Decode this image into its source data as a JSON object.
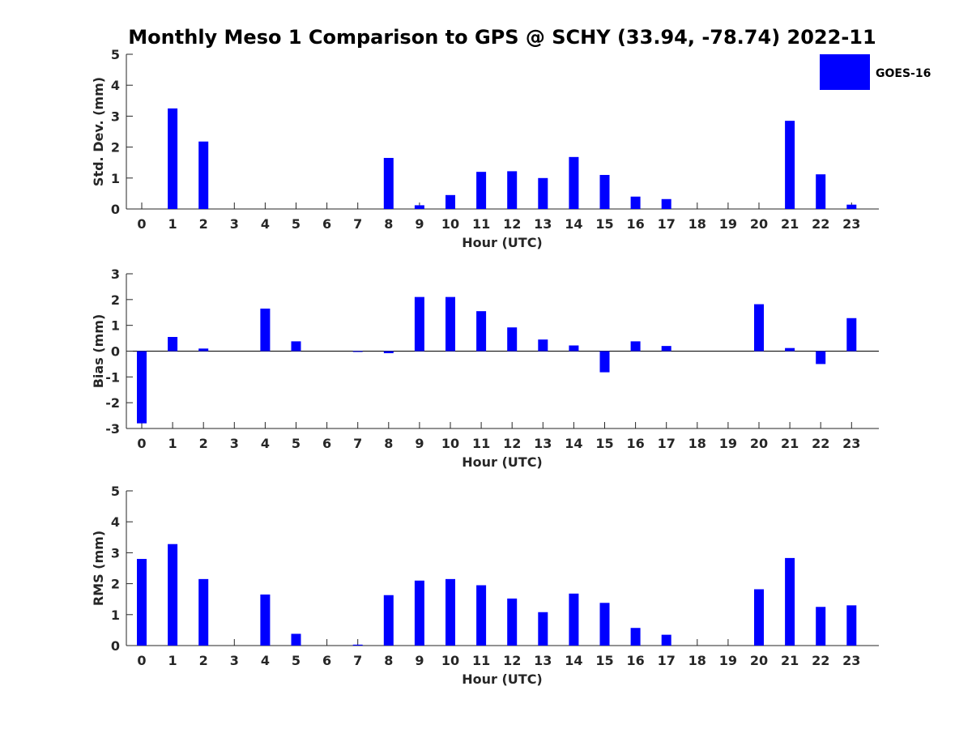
{
  "chart_data": {
    "title": "Monthly Meso 1 Comparison to GPS @ SCHY (33.94, -78.74) 2022-11",
    "legend": {
      "label": "GOES-16",
      "color": "#0000ff",
      "placement": "top-right"
    },
    "panels": [
      {
        "type": "bar",
        "id": "std-dev",
        "ylabel": "Std. Dev. (mm)",
        "xlabel": "Hour (UTC)",
        "ylim": [
          0,
          5
        ],
        "yticks": [
          0,
          1,
          2,
          3,
          4,
          5
        ],
        "categories": [
          0,
          1,
          2,
          3,
          4,
          5,
          6,
          7,
          8,
          9,
          10,
          11,
          12,
          13,
          14,
          15,
          16,
          17,
          18,
          19,
          20,
          21,
          22,
          23
        ],
        "values": [
          0,
          3.25,
          2.18,
          0,
          0,
          0,
          0,
          0,
          1.65,
          0.12,
          0.45,
          1.2,
          1.22,
          1.0,
          1.68,
          1.1,
          0.4,
          0.32,
          0,
          0,
          0,
          2.85,
          1.12,
          0.14
        ],
        "series_name": "GOES-16",
        "color": "#0000ff"
      },
      {
        "type": "bar",
        "id": "bias",
        "ylabel": "Bias (mm)",
        "xlabel": "Hour (UTC)",
        "ylim": [
          -3,
          3
        ],
        "yticks": [
          -3,
          -2,
          -1,
          0,
          1,
          2,
          3
        ],
        "categories": [
          0,
          1,
          2,
          3,
          4,
          5,
          6,
          7,
          8,
          9,
          10,
          11,
          12,
          13,
          14,
          15,
          16,
          17,
          18,
          19,
          20,
          21,
          22,
          23
        ],
        "values": [
          -2.8,
          0.55,
          0.1,
          0,
          1.65,
          0.38,
          0,
          -0.02,
          -0.08,
          2.1,
          2.1,
          1.55,
          0.92,
          0.45,
          0.22,
          -0.82,
          0.38,
          0.2,
          0,
          0,
          1.82,
          0.12,
          -0.5,
          1.28
        ],
        "series_name": "GOES-16",
        "color": "#0000ff"
      },
      {
        "type": "bar",
        "id": "rms",
        "ylabel": "RMS (mm)",
        "xlabel": "Hour (UTC)",
        "ylim": [
          0,
          5
        ],
        "yticks": [
          0,
          1,
          2,
          3,
          4,
          5
        ],
        "categories": [
          0,
          1,
          2,
          3,
          4,
          5,
          6,
          7,
          8,
          9,
          10,
          11,
          12,
          13,
          14,
          15,
          16,
          17,
          18,
          19,
          20,
          21,
          22,
          23
        ],
        "values": [
          2.8,
          3.28,
          2.15,
          0,
          1.65,
          0.38,
          0,
          0.03,
          1.63,
          2.1,
          2.15,
          1.95,
          1.52,
          1.08,
          1.68,
          1.38,
          0.57,
          0.35,
          0,
          0,
          1.82,
          2.83,
          1.25,
          1.3
        ],
        "series_name": "GOES-16",
        "color": "#0000ff"
      }
    ]
  }
}
